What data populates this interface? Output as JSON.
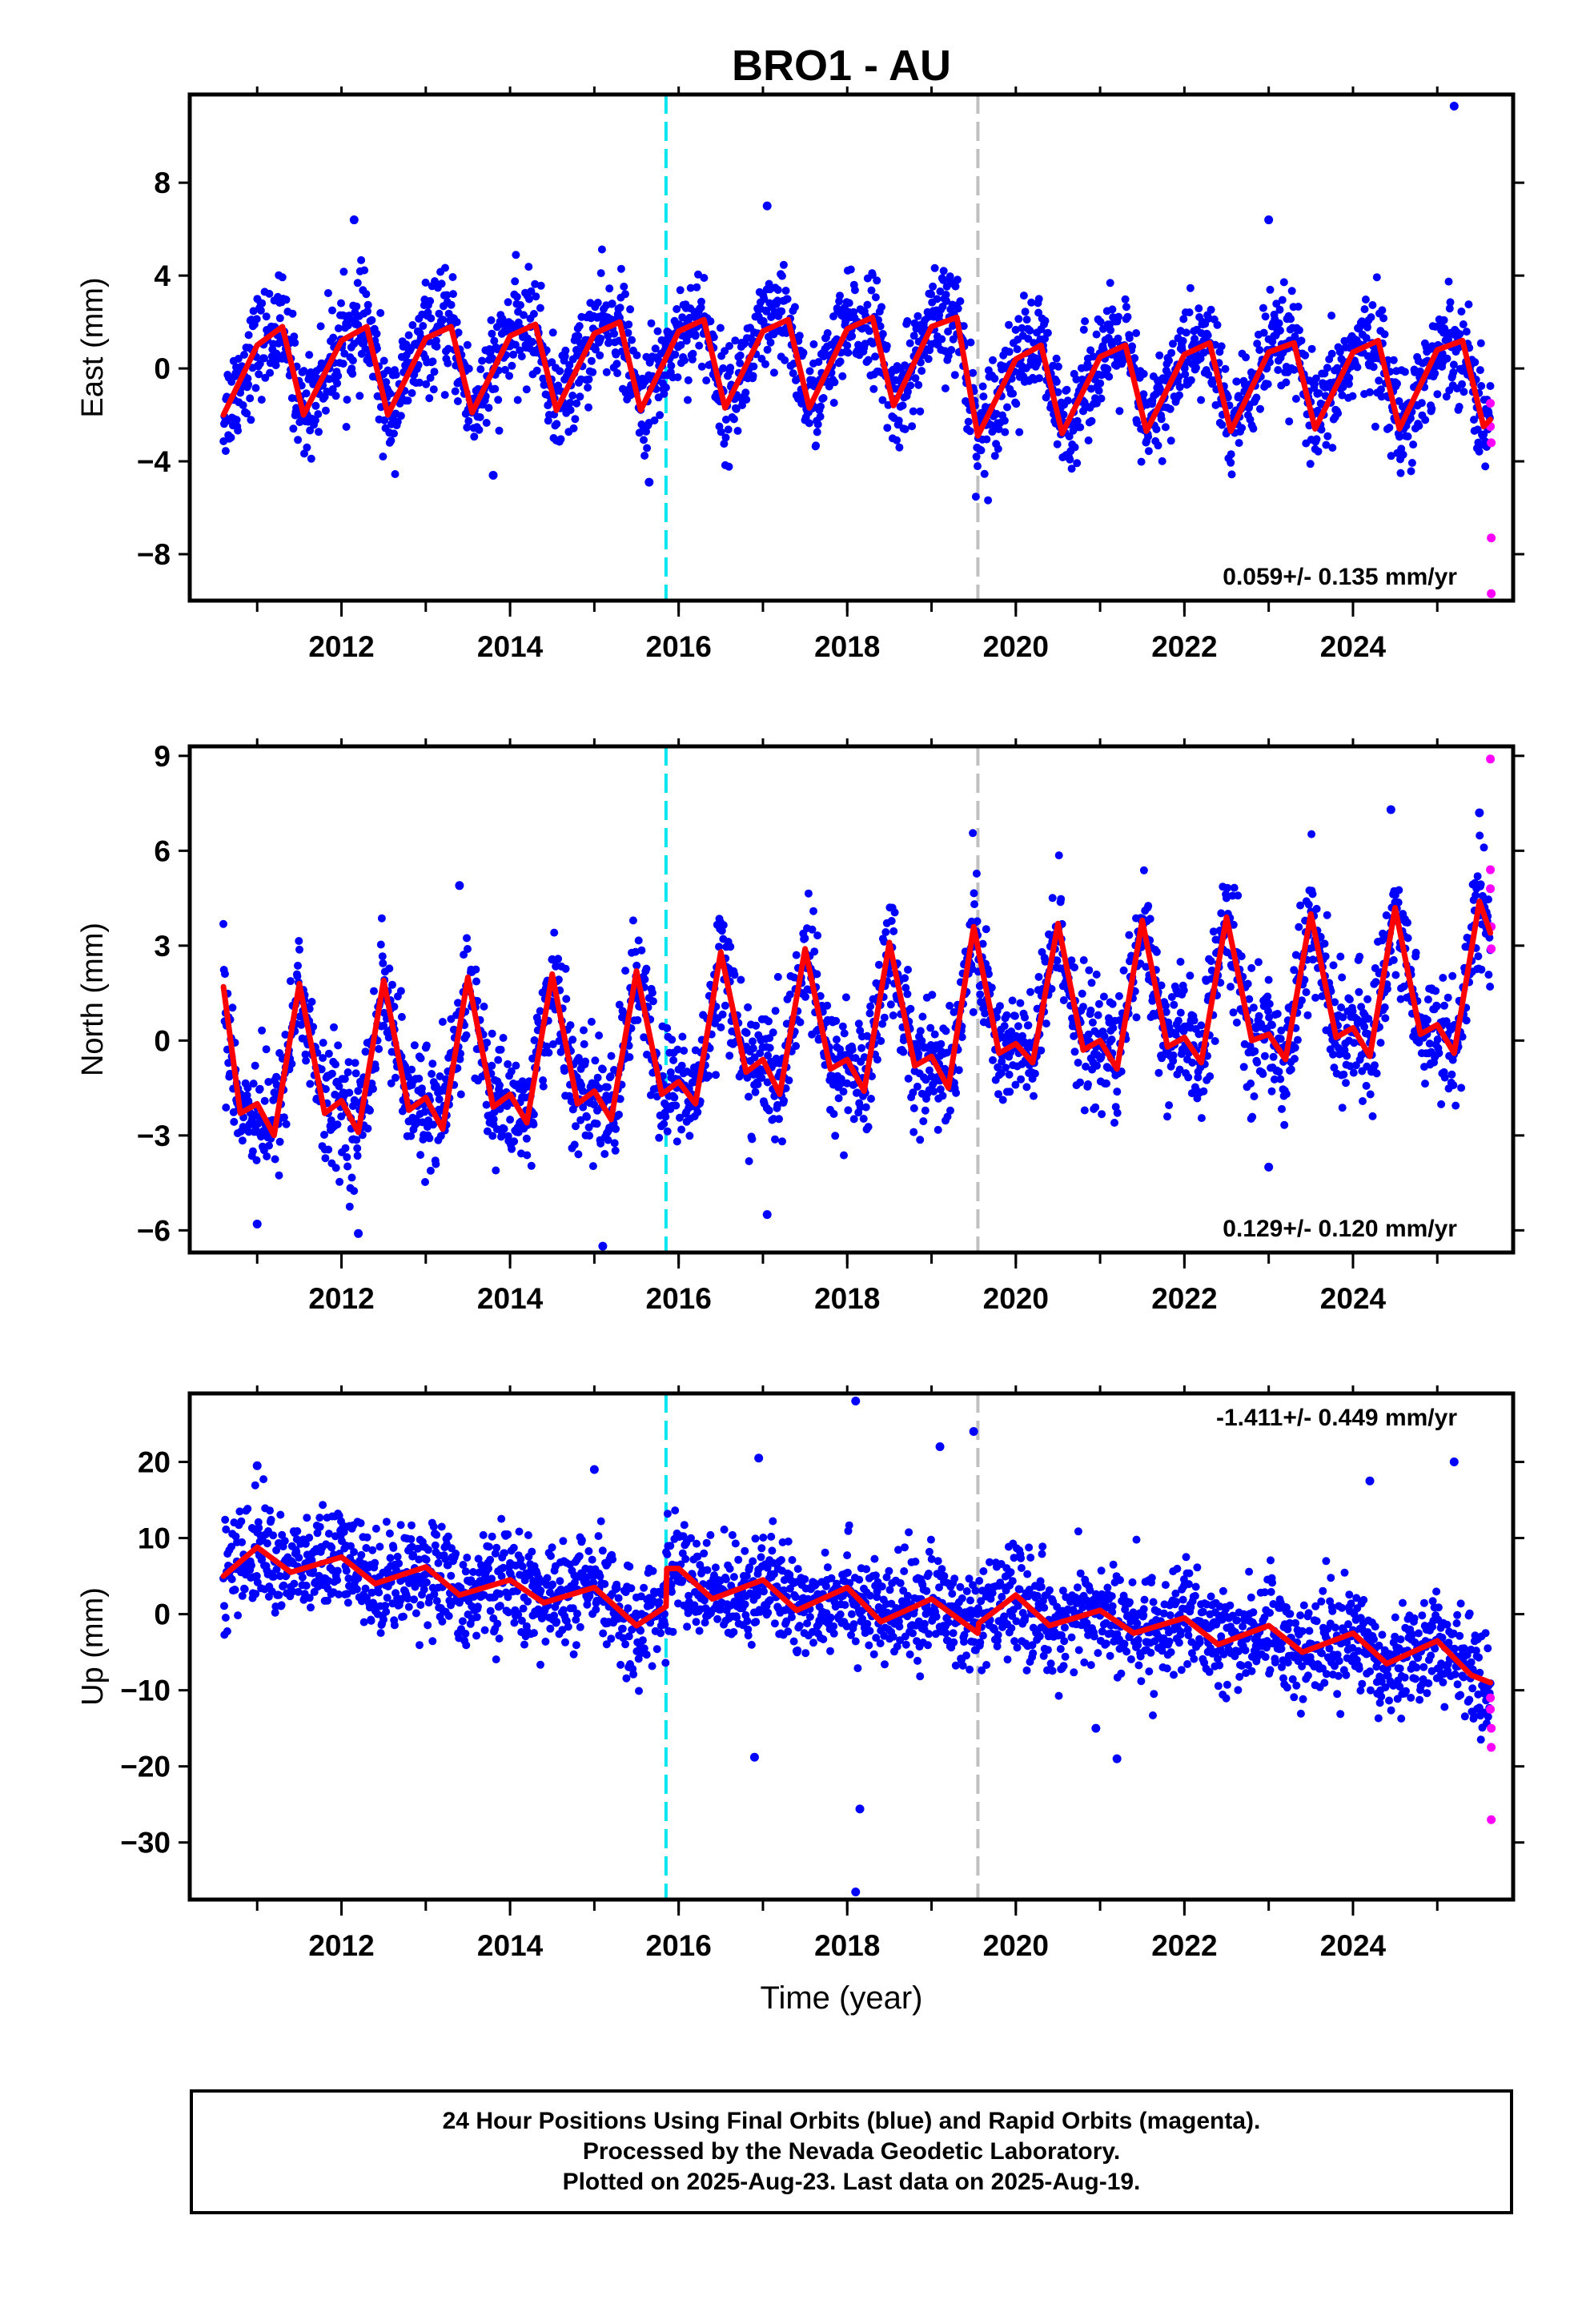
{
  "figure": {
    "title": "BRO1 - AU",
    "xlabel": "Time (year)"
  },
  "footer": {
    "line1": "24 Hour Positions Using Final Orbits (blue) and Rapid Orbits (magenta).",
    "line2": "Processed by the Nevada Geodetic Laboratory.",
    "line3": "Plotted on 2025-Aug-23. Last data on 2025-Aug-19."
  },
  "colors": {
    "final_orbits": "#0000ff",
    "rapid_orbits": "#ff00ff",
    "model": "#ff0000",
    "event_line_1": "#00e5ee",
    "event_line_2": "#c0c0c0"
  },
  "chart_data": [
    {
      "type": "scatter",
      "panel": "east",
      "ylabel": "East (mm)",
      "xlim": [
        2010.2,
        2025.9
      ],
      "ylim": [
        -10.0,
        11.8
      ],
      "x_ticks": [
        2012,
        2014,
        2016,
        2018,
        2020,
        2022,
        2024
      ],
      "y_ticks": [
        -8,
        -4,
        0,
        4,
        8
      ],
      "rate_label": "0.059+/- 0.135 mm/yr",
      "rate_label_position": "bottom-right",
      "event_lines": [
        {
          "x": 2015.85,
          "color": "cyan",
          "style": "dashed"
        },
        {
          "x": 2019.55,
          "color": "gray",
          "style": "dashed"
        }
      ],
      "series": [
        {
          "values": [
            [
              2010.6,
              -2.0
            ],
            [
              2011.0,
              1.0
            ],
            [
              2011.3,
              1.8
            ],
            [
              2011.55,
              -2.0
            ],
            [
              2012.0,
              1.2
            ],
            [
              2012.3,
              1.8
            ],
            [
              2012.55,
              -2.0
            ],
            [
              2013.0,
              1.3
            ],
            [
              2013.3,
              1.8
            ],
            [
              2013.55,
              -1.9
            ],
            [
              2014.0,
              1.4
            ],
            [
              2014.3,
              1.9
            ],
            [
              2014.55,
              -1.8
            ],
            [
              2015.0,
              1.5
            ],
            [
              2015.3,
              2.0
            ],
            [
              2015.55,
              -1.8
            ],
            [
              2016.0,
              1.6
            ],
            [
              2016.3,
              2.1
            ],
            [
              2016.55,
              -1.7
            ],
            [
              2017.0,
              1.6
            ],
            [
              2017.3,
              2.1
            ],
            [
              2017.55,
              -1.7
            ],
            [
              2018.0,
              1.7
            ],
            [
              2018.3,
              2.2
            ],
            [
              2018.55,
              -1.6
            ],
            [
              2019.0,
              1.8
            ],
            [
              2019.3,
              2.2
            ],
            [
              2019.55,
              -2.9
            ],
            [
              2020.0,
              0.4
            ],
            [
              2020.3,
              1.0
            ],
            [
              2020.55,
              -2.8
            ],
            [
              2021.0,
              0.5
            ],
            [
              2021.3,
              1.0
            ],
            [
              2021.55,
              -2.7
            ],
            [
              2022.0,
              0.6
            ],
            [
              2022.3,
              1.1
            ],
            [
              2022.55,
              -2.7
            ],
            [
              2023.0,
              0.7
            ],
            [
              2023.3,
              1.1
            ],
            [
              2023.55,
              -2.6
            ],
            [
              2024.0,
              0.7
            ],
            [
              2024.3,
              1.2
            ],
            [
              2024.55,
              -2.6
            ],
            [
              2025.0,
              0.8
            ],
            [
              2025.3,
              1.2
            ],
            [
              2025.55,
              -2.5
            ],
            [
              2025.63,
              -2.2
            ]
          ]
        },
        {
          "name": "outliers",
          "values": [
            [
              2012.15,
              6.4
            ],
            [
              2013.8,
              -4.6
            ],
            [
              2015.65,
              -4.9
            ],
            [
              2017.05,
              7.0
            ],
            [
              2023.0,
              6.4
            ],
            [
              2025.2,
              11.3
            ]
          ]
        },
        {
          "name": "rapid",
          "values": [
            [
              2025.63,
              -1.5
            ],
            [
              2025.63,
              -2.5
            ],
            [
              2025.64,
              -3.2
            ],
            [
              2025.64,
              -7.3
            ],
            [
              2025.64,
              -9.7
            ]
          ]
        }
      ]
    },
    {
      "type": "scatter",
      "panel": "north",
      "ylabel": "North (mm)",
      "xlim": [
        2010.2,
        2025.9
      ],
      "ylim": [
        -6.7,
        9.3
      ],
      "x_ticks": [
        2012,
        2014,
        2016,
        2018,
        2020,
        2022,
        2024
      ],
      "y_ticks": [
        -6,
        -3,
        0,
        3,
        6,
        9
      ],
      "rate_label": "0.129+/- 0.120 mm/yr",
      "rate_label_position": "bottom-right",
      "event_lines": [
        {
          "x": 2015.85,
          "color": "cyan",
          "style": "dashed"
        },
        {
          "x": 2019.55,
          "color": "gray",
          "style": "dashed"
        }
      ],
      "series": [
        {
          "values": [
            [
              2010.6,
              1.7
            ],
            [
              2010.8,
              -2.3
            ],
            [
              2011.0,
              -2.0
            ],
            [
              2011.2,
              -3.0
            ],
            [
              2011.5,
              1.8
            ],
            [
              2011.8,
              -2.3
            ],
            [
              2012.0,
              -1.9
            ],
            [
              2012.2,
              -2.9
            ],
            [
              2012.5,
              1.9
            ],
            [
              2012.8,
              -2.2
            ],
            [
              2013.0,
              -1.8
            ],
            [
              2013.2,
              -2.8
            ],
            [
              2013.5,
              2.0
            ],
            [
              2013.8,
              -2.1
            ],
            [
              2014.0,
              -1.7
            ],
            [
              2014.2,
              -2.6
            ],
            [
              2014.5,
              2.1
            ],
            [
              2014.8,
              -2.0
            ],
            [
              2015.0,
              -1.6
            ],
            [
              2015.2,
              -2.5
            ],
            [
              2015.5,
              2.2
            ],
            [
              2015.8,
              -1.7
            ],
            [
              2016.0,
              -1.3
            ],
            [
              2016.2,
              -2.0
            ],
            [
              2016.5,
              2.8
            ],
            [
              2016.8,
              -1.0
            ],
            [
              2017.0,
              -0.6
            ],
            [
              2017.2,
              -1.7
            ],
            [
              2017.5,
              2.9
            ],
            [
              2017.8,
              -0.9
            ],
            [
              2018.0,
              -0.6
            ],
            [
              2018.2,
              -1.6
            ],
            [
              2018.5,
              3.1
            ],
            [
              2018.8,
              -0.8
            ],
            [
              2019.0,
              -0.5
            ],
            [
              2019.2,
              -1.5
            ],
            [
              2019.5,
              3.6
            ],
            [
              2019.8,
              -0.4
            ],
            [
              2020.0,
              -0.1
            ],
            [
              2020.2,
              -0.7
            ],
            [
              2020.5,
              3.7
            ],
            [
              2020.8,
              -0.3
            ],
            [
              2021.0,
              0.0
            ],
            [
              2021.2,
              -0.9
            ],
            [
              2021.5,
              3.8
            ],
            [
              2021.8,
              -0.2
            ],
            [
              2022.0,
              0.1
            ],
            [
              2022.2,
              -0.7
            ],
            [
              2022.5,
              3.9
            ],
            [
              2022.8,
              0.0
            ],
            [
              2023.0,
              0.2
            ],
            [
              2023.2,
              -0.6
            ],
            [
              2023.5,
              4.0
            ],
            [
              2023.8,
              0.1
            ],
            [
              2024.0,
              0.4
            ],
            [
              2024.2,
              -0.5
            ],
            [
              2024.5,
              4.2
            ],
            [
              2024.8,
              0.2
            ],
            [
              2025.0,
              0.5
            ],
            [
              2025.2,
              -0.4
            ],
            [
              2025.5,
              4.4
            ],
            [
              2025.63,
              3.4
            ]
          ]
        },
        {
          "name": "outliers",
          "values": [
            [
              2011.0,
              -5.8
            ],
            [
              2012.2,
              -6.1
            ],
            [
              2013.4,
              4.9
            ],
            [
              2015.1,
              -6.5
            ],
            [
              2017.05,
              -5.5
            ],
            [
              2023.0,
              -4.0
            ],
            [
              2024.45,
              7.3
            ],
            [
              2025.5,
              7.2
            ]
          ]
        },
        {
          "name": "rapid",
          "values": [
            [
              2025.63,
              8.9
            ],
            [
              2025.63,
              5.4
            ],
            [
              2025.63,
              4.8
            ],
            [
              2025.64,
              3.6
            ],
            [
              2025.64,
              2.9
            ]
          ]
        }
      ]
    },
    {
      "type": "scatter",
      "panel": "up",
      "ylabel": "Up (mm)",
      "xlim": [
        2010.2,
        2025.9
      ],
      "ylim": [
        -37.5,
        29.0
      ],
      "x_ticks": [
        2012,
        2014,
        2016,
        2018,
        2020,
        2022,
        2024
      ],
      "y_ticks": [
        -30,
        -20,
        -10,
        0,
        10,
        20
      ],
      "rate_label": "-1.411+/- 0.449 mm/yr",
      "rate_label_position": "top-right",
      "event_lines": [
        {
          "x": 2015.85,
          "color": "cyan",
          "style": "dashed"
        },
        {
          "x": 2019.55,
          "color": "gray",
          "style": "dashed"
        }
      ],
      "series": [
        {
          "values": [
            [
              2010.6,
              5.0
            ],
            [
              2011.0,
              8.8
            ],
            [
              2011.4,
              5.5
            ],
            [
              2012.0,
              7.5
            ],
            [
              2012.4,
              4.0
            ],
            [
              2013.0,
              6.2
            ],
            [
              2013.4,
              2.5
            ],
            [
              2014.0,
              4.5
            ],
            [
              2014.4,
              1.5
            ],
            [
              2015.0,
              3.5
            ],
            [
              2015.5,
              -1.5
            ],
            [
              2015.85,
              1.0
            ],
            [
              2015.86,
              6.0
            ],
            [
              2016.0,
              6.0
            ],
            [
              2016.4,
              2.0
            ],
            [
              2017.0,
              4.5
            ],
            [
              2017.4,
              0.5
            ],
            [
              2018.0,
              3.5
            ],
            [
              2018.4,
              -1.0
            ],
            [
              2019.0,
              2.0
            ],
            [
              2019.55,
              -2.5
            ],
            [
              2019.56,
              -1.2
            ],
            [
              2020.0,
              2.5
            ],
            [
              2020.4,
              -1.5
            ],
            [
              2021.0,
              0.5
            ],
            [
              2021.4,
              -2.5
            ],
            [
              2022.0,
              -0.5
            ],
            [
              2022.4,
              -4.0
            ],
            [
              2023.0,
              -1.5
            ],
            [
              2023.4,
              -5.0
            ],
            [
              2024.0,
              -2.5
            ],
            [
              2024.4,
              -6.5
            ],
            [
              2025.0,
              -3.5
            ],
            [
              2025.4,
              -8.0
            ],
            [
              2025.63,
              -9.0
            ]
          ]
        },
        {
          "name": "outliers",
          "values": [
            [
              2011.0,
              19.5
            ],
            [
              2015.0,
              19.0
            ],
            [
              2016.95,
              20.5
            ],
            [
              2018.1,
              28.0
            ],
            [
              2019.1,
              22.0
            ],
            [
              2019.5,
              24.0
            ],
            [
              2016.9,
              -18.8
            ],
            [
              2018.15,
              -25.6
            ],
            [
              2018.1,
              -36.5
            ],
            [
              2020.95,
              -15.0
            ],
            [
              2021.2,
              -19.0
            ],
            [
              2024.2,
              17.5
            ],
            [
              2025.2,
              20.0
            ]
          ]
        },
        {
          "name": "rapid",
          "values": [
            [
              2025.63,
              -11.0
            ],
            [
              2025.63,
              -12.5
            ],
            [
              2025.64,
              -15.0
            ],
            [
              2025.64,
              -17.5
            ],
            [
              2025.64,
              -27.0
            ]
          ]
        }
      ]
    }
  ]
}
